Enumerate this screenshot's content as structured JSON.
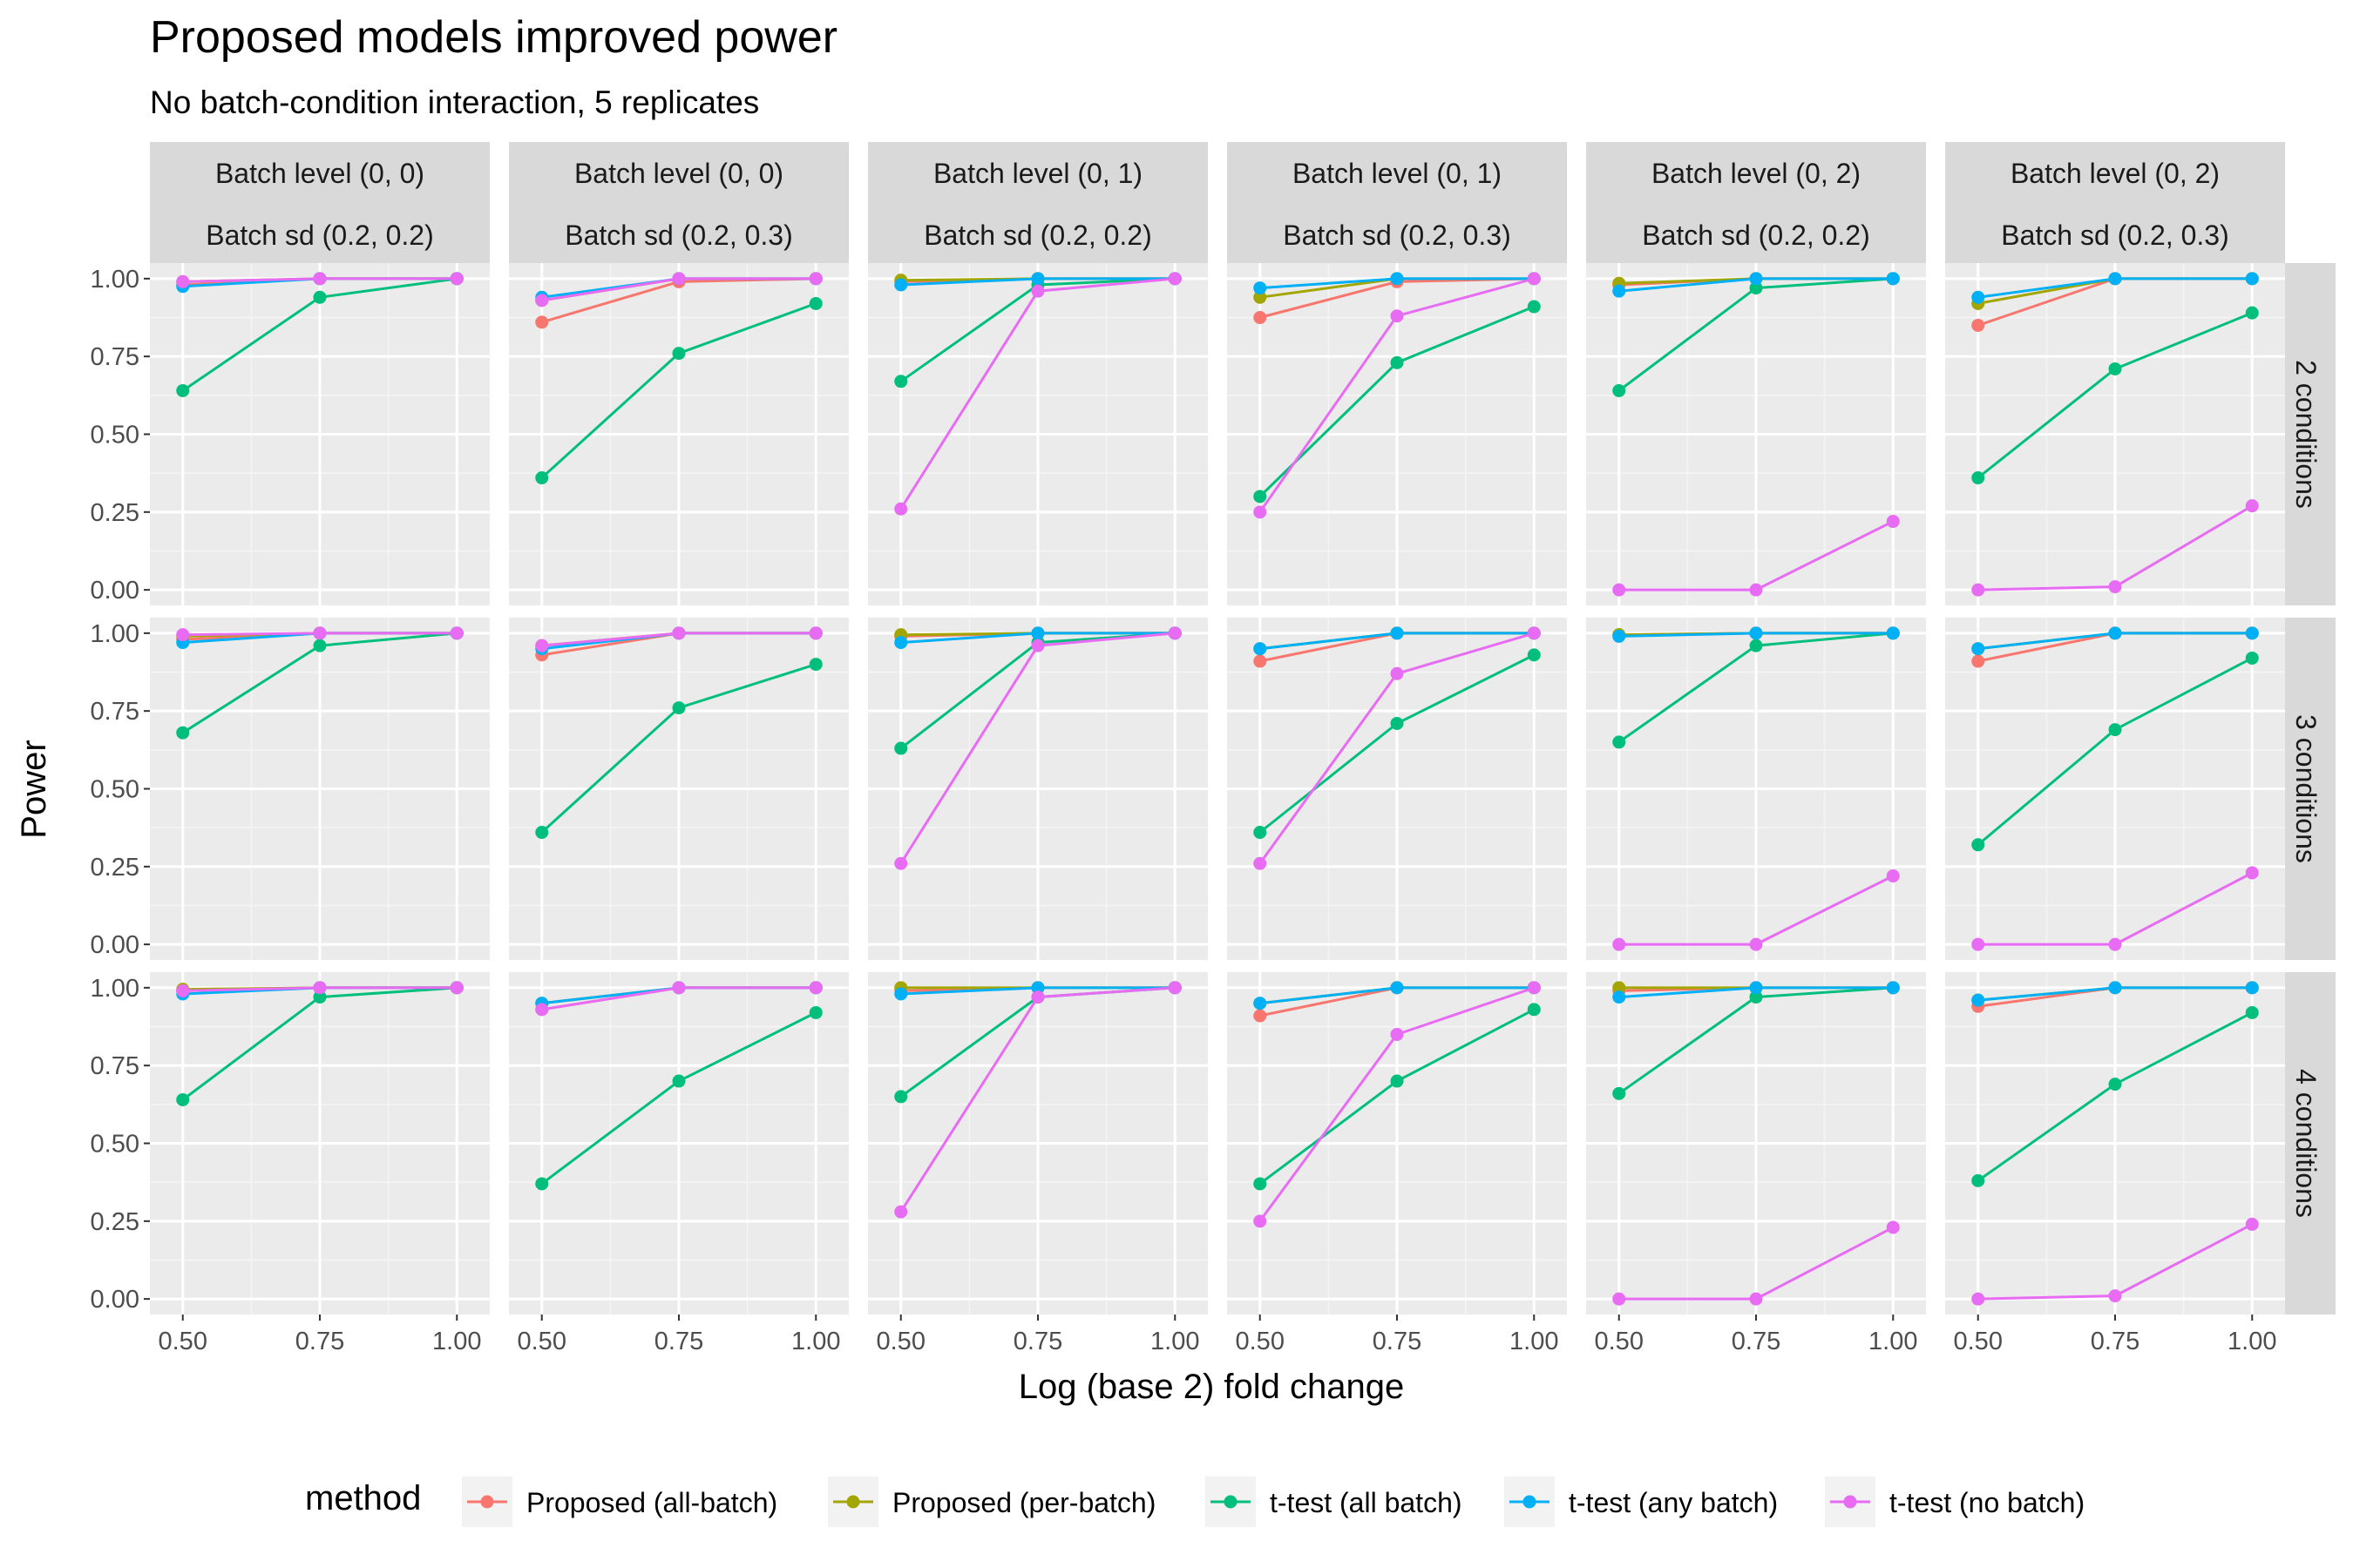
{
  "chart_data": {
    "type": "line",
    "title": "Proposed models improved power",
    "subtitle": "No batch-condition interaction, 5 replicates",
    "xlabel": "Log (base 2) fold change",
    "ylabel": "Power",
    "x": [
      0.5,
      0.75,
      1.0
    ],
    "x_tick_labels": [
      "0.50",
      "0.75",
      "1.00"
    ],
    "y_tick_labels": [
      "0.00",
      "0.25",
      "0.50",
      "0.75",
      "1.00"
    ],
    "y_ticks": [
      0,
      0.25,
      0.5,
      0.75,
      1.0
    ],
    "xlim": [
      0.44,
      1.06
    ],
    "ylim": [
      -0.05,
      1.05
    ],
    "grid": true,
    "legend_position": "bottom",
    "legend_title": "method",
    "methods": [
      {
        "name": "Proposed (all-batch)",
        "color": "#F8766D"
      },
      {
        "name": "Proposed (per-batch)",
        "color": "#A3A500"
      },
      {
        "name": "t-test (all batch)",
        "color": "#00BF7D"
      },
      {
        "name": "t-test (any batch)",
        "color": "#00B0F6"
      },
      {
        "name": "t-test (no batch)",
        "color": "#E76BF3"
      }
    ],
    "columns": [
      {
        "level": "Batch level (0, 0)",
        "sd": "Batch sd (0.2, 0.2)"
      },
      {
        "level": "Batch level (0, 0)",
        "sd": "Batch sd (0.2, 0.3)"
      },
      {
        "level": "Batch level (0, 1)",
        "sd": "Batch sd (0.2, 0.2)"
      },
      {
        "level": "Batch level (0, 1)",
        "sd": "Batch sd (0.2, 0.3)"
      },
      {
        "level": "Batch level (0, 2)",
        "sd": "Batch sd (0.2, 0.2)"
      },
      {
        "level": "Batch level (0, 2)",
        "sd": "Batch sd (0.2, 0.3)"
      }
    ],
    "rows": [
      "2 conditions",
      "3 conditions",
      "4 conditions"
    ],
    "panels": [
      [
        [
          [
            0.98,
            1,
            1
          ],
          [
            0.99,
            1,
            1
          ],
          [
            0.64,
            0.94,
            1
          ],
          [
            0.975,
            1,
            1
          ],
          [
            0.99,
            1,
            1
          ]
        ],
        [
          [
            0.86,
            0.99,
            1
          ],
          [
            0.93,
            1,
            1
          ],
          [
            0.36,
            0.76,
            0.92
          ],
          [
            0.94,
            1,
            1
          ],
          [
            0.93,
            1,
            1
          ]
        ],
        [
          [
            0.99,
            1,
            1
          ],
          [
            0.995,
            1,
            1
          ],
          [
            0.67,
            0.98,
            1
          ],
          [
            0.98,
            1,
            1
          ],
          [
            0.26,
            0.96,
            1
          ]
        ],
        [
          [
            0.875,
            0.99,
            1
          ],
          [
            0.94,
            1,
            1
          ],
          [
            0.3,
            0.73,
            0.91
          ],
          [
            0.97,
            1,
            1
          ],
          [
            0.25,
            0.88,
            1
          ]
        ],
        [
          [
            0.98,
            1,
            1
          ],
          [
            0.985,
            1,
            1
          ],
          [
            0.64,
            0.97,
            1
          ],
          [
            0.96,
            1,
            1
          ],
          [
            0,
            0,
            0.22
          ]
        ],
        [
          [
            0.85,
            1,
            1
          ],
          [
            0.92,
            1,
            1
          ],
          [
            0.36,
            0.71,
            0.89
          ],
          [
            0.94,
            1,
            1
          ],
          [
            0,
            0.01,
            0.27
          ]
        ]
      ],
      [
        [
          [
            0.98,
            1,
            1
          ],
          [
            0.99,
            1,
            1
          ],
          [
            0.68,
            0.96,
            1
          ],
          [
            0.97,
            1,
            1
          ],
          [
            0.995,
            1,
            1
          ]
        ],
        [
          [
            0.93,
            1,
            1
          ],
          [
            0.96,
            1,
            1
          ],
          [
            0.36,
            0.76,
            0.9
          ],
          [
            0.95,
            1,
            1
          ],
          [
            0.96,
            1,
            1
          ]
        ],
        [
          [
            0.99,
            1,
            1
          ],
          [
            0.995,
            1,
            1
          ],
          [
            0.63,
            0.97,
            1
          ],
          [
            0.97,
            1,
            1
          ],
          [
            0.26,
            0.96,
            1
          ]
        ],
        [
          [
            0.91,
            1,
            1
          ],
          [
            0.95,
            1,
            1
          ],
          [
            0.36,
            0.71,
            0.93
          ],
          [
            0.95,
            1,
            1
          ],
          [
            0.26,
            0.87,
            1
          ]
        ],
        [
          [
            0.995,
            1,
            1
          ],
          [
            0.995,
            1,
            1
          ],
          [
            0.65,
            0.96,
            1
          ],
          [
            0.99,
            1,
            1
          ],
          [
            0,
            0,
            0.22
          ]
        ],
        [
          [
            0.91,
            1,
            1
          ],
          [
            0.95,
            1,
            1
          ],
          [
            0.32,
            0.69,
            0.92
          ],
          [
            0.95,
            1,
            1
          ],
          [
            0,
            0,
            0.23
          ]
        ]
      ],
      [
        [
          [
            0.99,
            1,
            1
          ],
          [
            0.995,
            1,
            1
          ],
          [
            0.64,
            0.97,
            1
          ],
          [
            0.98,
            1,
            1
          ],
          [
            0.99,
            1,
            1
          ]
        ],
        [
          [
            0.93,
            1,
            1
          ],
          [
            0.95,
            1,
            1
          ],
          [
            0.37,
            0.7,
            0.92
          ],
          [
            0.95,
            1,
            1
          ],
          [
            0.93,
            1,
            1
          ]
        ],
        [
          [
            0.99,
            1,
            1
          ],
          [
            1,
            1,
            1
          ],
          [
            0.65,
            0.97,
            1
          ],
          [
            0.98,
            1,
            1
          ],
          [
            0.28,
            0.97,
            1
          ]
        ],
        [
          [
            0.91,
            1,
            1
          ],
          [
            0.95,
            1,
            1
          ],
          [
            0.37,
            0.7,
            0.93
          ],
          [
            0.95,
            1,
            1
          ],
          [
            0.25,
            0.85,
            1
          ]
        ],
        [
          [
            0.99,
            1,
            1
          ],
          [
            1,
            1,
            1
          ],
          [
            0.66,
            0.97,
            1
          ],
          [
            0.97,
            1,
            1
          ],
          [
            0,
            0,
            0.23
          ]
        ],
        [
          [
            0.94,
            1,
            1
          ],
          [
            0.96,
            1,
            1
          ],
          [
            0.38,
            0.69,
            0.92
          ],
          [
            0.96,
            1,
            1
          ],
          [
            0,
            0.01,
            0.24
          ]
        ]
      ]
    ]
  }
}
